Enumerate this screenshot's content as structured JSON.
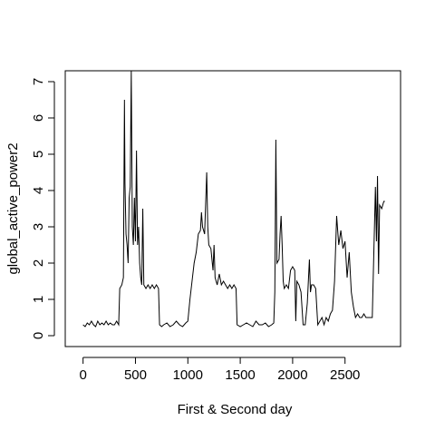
{
  "chart_data": {
    "type": "line",
    "xlabel": "First & Second day",
    "ylabel": "global_active_power2",
    "xlim": [
      -170,
      3030
    ],
    "ylim": [
      -0.3,
      7.3
    ],
    "xticks": [
      0,
      500,
      1000,
      1500,
      2000,
      2500
    ],
    "yticks": [
      0,
      1,
      2,
      3,
      4,
      5,
      6,
      7
    ],
    "series": [
      {
        "name": "global_active_power",
        "color": "#000000",
        "x": [
          0,
          20,
          40,
          60,
          80,
          100,
          120,
          140,
          160,
          180,
          200,
          220,
          240,
          260,
          280,
          300,
          320,
          340,
          350,
          370,
          385,
          395,
          400,
          410,
          420,
          430,
          440,
          450,
          460,
          470,
          480,
          490,
          500,
          510,
          520,
          530,
          540,
          550,
          560,
          570,
          580,
          600,
          620,
          640,
          660,
          680,
          700,
          720,
          730,
          750,
          770,
          800,
          830,
          860,
          890,
          920,
          950,
          980,
          1000,
          1020,
          1040,
          1060,
          1080,
          1100,
          1120,
          1130,
          1140,
          1160,
          1180,
          1190,
          1200,
          1220,
          1240,
          1250,
          1260,
          1280,
          1300,
          1320,
          1340,
          1360,
          1380,
          1400,
          1420,
          1440,
          1460,
          1470,
          1500,
          1530,
          1560,
          1590,
          1620,
          1650,
          1680,
          1710,
          1740,
          1770,
          1800,
          1820,
          1830,
          1840,
          1850,
          1870,
          1880,
          1890,
          1900,
          1910,
          1920,
          1940,
          1960,
          1980,
          2000,
          2020,
          2030,
          2040,
          2060,
          2080,
          2100,
          2120,
          2140,
          2160,
          2170,
          2180,
          2200,
          2220,
          2240,
          2260,
          2280,
          2300,
          2320,
          2340,
          2360,
          2380,
          2400,
          2420,
          2440,
          2460,
          2480,
          2500,
          2520,
          2540,
          2560,
          2580,
          2600,
          2620,
          2640,
          2660,
          2680,
          2700,
          2760,
          2790,
          2800,
          2810,
          2820,
          2830,
          2850,
          2870,
          2880
        ],
        "values": [
          0.3,
          0.25,
          0.35,
          0.3,
          0.4,
          0.3,
          0.25,
          0.4,
          0.3,
          0.35,
          0.3,
          0.4,
          0.3,
          0.35,
          0.3,
          0.3,
          0.4,
          0.3,
          1.3,
          1.4,
          1.6,
          6.5,
          4.2,
          2.8,
          2.5,
          2.0,
          3.8,
          4.1,
          7.3,
          3.0,
          2.5,
          3.8,
          2.6,
          5.1,
          2.5,
          3.0,
          2.0,
          1.6,
          1.4,
          3.5,
          1.4,
          1.3,
          1.4,
          1.3,
          1.4,
          1.3,
          1.4,
          1.3,
          0.3,
          0.25,
          0.3,
          0.35,
          0.25,
          0.3,
          0.4,
          0.3,
          0.25,
          0.35,
          0.4,
          1.0,
          1.5,
          2.0,
          2.3,
          2.8,
          2.9,
          3.4,
          3.0,
          2.8,
          4.5,
          3.0,
          2.5,
          2.4,
          1.8,
          2.5,
          1.6,
          1.4,
          1.7,
          1.4,
          1.5,
          1.4,
          1.3,
          1.4,
          1.3,
          1.4,
          1.3,
          0.3,
          0.25,
          0.3,
          0.35,
          0.3,
          0.25,
          0.4,
          0.3,
          0.3,
          0.35,
          0.25,
          0.3,
          0.35,
          1.2,
          5.4,
          2.0,
          2.1,
          2.8,
          3.3,
          2.5,
          1.5,
          1.3,
          1.4,
          1.3,
          1.8,
          1.9,
          1.8,
          0.4,
          1.5,
          1.4,
          1.2,
          0.3,
          0.3,
          0.9,
          2.1,
          1.2,
          1.4,
          1.4,
          1.3,
          0.3,
          0.4,
          0.5,
          0.3,
          0.5,
          0.4,
          0.6,
          0.7,
          1.5,
          3.3,
          2.5,
          2.9,
          2.4,
          2.6,
          1.6,
          2.3,
          1.2,
          0.8,
          0.5,
          0.6,
          0.5,
          0.5,
          0.6,
          0.5,
          0.5,
          4.1,
          2.6,
          4.4,
          1.7,
          3.6,
          3.5,
          3.7,
          3.7
        ]
      }
    ]
  }
}
